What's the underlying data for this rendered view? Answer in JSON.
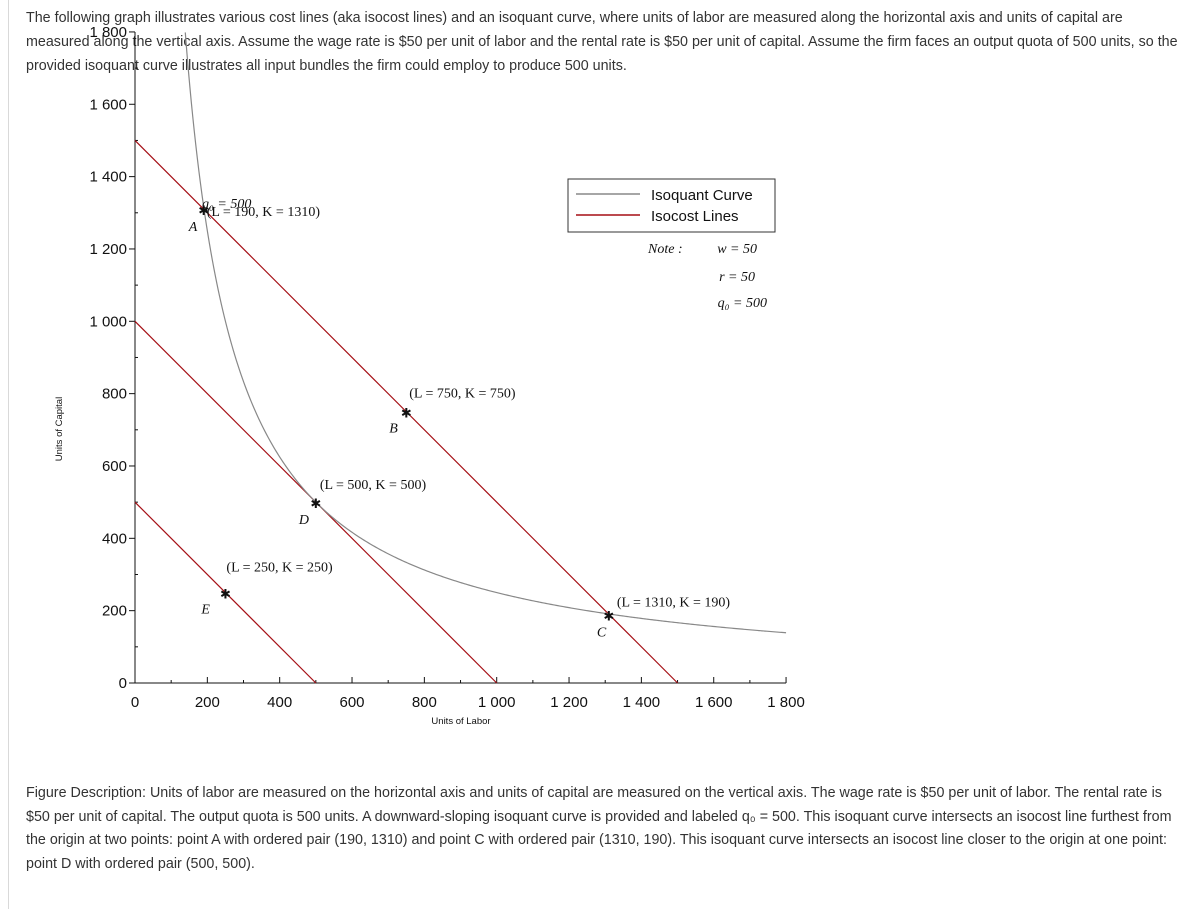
{
  "intro_text": "The following graph illustrates various cost lines (aka isocost lines) and an isoquant curve, where units of labor are measured along the horizontal axis and units of capital are measured along the vertical axis.  Assume the wage rate is $50 per unit of labor and the rental rate is $50 per unit of capital. Assume the firm faces an output quota of 500 units, so the provided isoquant curve illustrates all input bundles the firm could employ to produce 500 units.",
  "figure_description": "Figure Description: Units of labor are measured on the horizontal axis and units of capital are measured on the vertical axis. The wage rate is $50 per unit of labor. The rental rate is $50 per unit of capital. The output quota is 500 units. A downward-sloping isoquant curve is provided and labeled q₀ = 500. This isoquant curve intersects an isocost line furthest from the origin at two points: point A with ordered pair (190, 1310) and point C with ordered pair (1310, 190). This isoquant curve intersects an isocost line closer to the origin at one point: point D with ordered pair (500, 500).",
  "chart_data": {
    "type": "line",
    "xlabel": "Units of Labor",
    "ylabel": "Units of Capital",
    "xlim": [
      0,
      1800
    ],
    "ylim": [
      0,
      1800
    ],
    "x_ticks": [
      0,
      200,
      400,
      600,
      800,
      1000,
      1200,
      1400,
      1600,
      1800
    ],
    "x_tick_labels": [
      "0",
      "200",
      "400",
      "600",
      "800",
      "1 000",
      "1 200",
      "1 400",
      "1 600",
      "1 800"
    ],
    "y_ticks": [
      0,
      200,
      400,
      600,
      800,
      1000,
      1200,
      1400,
      1600,
      1800
    ],
    "y_tick_labels": [
      "0",
      "200",
      "400",
      "600",
      "800",
      "1 000",
      "1 200",
      "1 400",
      "1 600",
      "1 800"
    ],
    "legend": {
      "position": "top-right",
      "entries": [
        {
          "label": "Isoquant Curve",
          "color": "#888888"
        },
        {
          "label": "Isocost Lines",
          "color": "#a50f15"
        }
      ]
    },
    "series": [
      {
        "name": "Isoquant Curve",
        "kind": "isoquant",
        "equation": "K = 250000 / L",
        "x_range": [
          139,
          1800
        ],
        "color": "#888888"
      },
      {
        "name": "Isocost Lines",
        "kind": "isocost",
        "color": "#a50f15",
        "lines": [
          {
            "x": [
              0,
              500
            ],
            "y": [
              500,
              0
            ]
          },
          {
            "x": [
              0,
              1000
            ],
            "y": [
              1000,
              0
            ]
          },
          {
            "x": [
              0,
              1500
            ],
            "y": [
              1500,
              0
            ]
          }
        ]
      }
    ],
    "points": [
      {
        "label": "A",
        "x": 190,
        "y": 1310,
        "coord_label": "(L = 190, K = 1310)"
      },
      {
        "label": "B",
        "x": 750,
        "y": 750,
        "coord_label": "(L = 750, K = 750)"
      },
      {
        "label": "C",
        "x": 1310,
        "y": 190,
        "coord_label": "(L = 1310, K = 190)"
      },
      {
        "label": "D",
        "x": 500,
        "y": 500,
        "coord_label": "(L = 500, K = 500)"
      },
      {
        "label": "E",
        "x": 250,
        "y": 250,
        "coord_label": "(L = 250, K = 250)"
      }
    ],
    "annotations": {
      "isoquant_label": "q₀ = 500",
      "note_label": "Note :",
      "note_lines": [
        "w = 50",
        "r = 50",
        "q₀ = 500"
      ]
    }
  }
}
